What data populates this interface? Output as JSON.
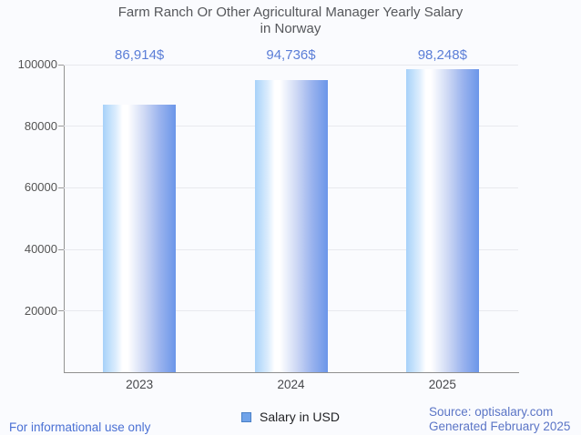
{
  "title": {
    "line1": "Farm Ranch Or Other Agricultural Manager Yearly Salary",
    "line2": "in Norway"
  },
  "legend": {
    "label": "Salary in USD",
    "swatch_color": "#70a3e9",
    "swatch_border": "#4a80c6"
  },
  "footer": {
    "left": "For informational use only",
    "source": "Source: optisalary.com",
    "generated": "Generated February 2025"
  },
  "colors": {
    "background": "#fafbfe",
    "title_text": "#55575b",
    "value_label_text": "#5b7ed7",
    "axis_line": "#8f8f8f",
    "gridline": "#e8e9ee",
    "tick_text": "#545454",
    "bar_edge_left": "#a7d1f9",
    "bar_center": "#ffffff",
    "bar_edge_right": "#6b96e9",
    "footer_left_text": "#4a70d4",
    "footer_right_text": "#5b75c6"
  },
  "chart_data": {
    "type": "bar",
    "title": "Farm Ranch Or Other Agricultural Manager Yearly Salary in Norway",
    "categories": [
      "2023",
      "2024",
      "2025"
    ],
    "values": [
      86914,
      94736,
      98248
    ],
    "value_labels": [
      "86,914$",
      "94,736$",
      "98,248$"
    ],
    "series_name": "Salary in USD",
    "xlabel": "",
    "ylabel": "",
    "ylim": [
      0,
      100000
    ],
    "yticks": [
      20000,
      40000,
      60000,
      80000,
      100000
    ],
    "ytick_labels": [
      "20000",
      "40000",
      "60000",
      "80000",
      "100000"
    ],
    "grid": true,
    "legend_position": "bottom-center"
  }
}
